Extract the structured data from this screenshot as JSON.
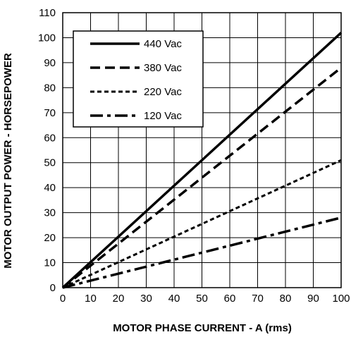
{
  "chart_data": {
    "type": "line",
    "xlabel": "MOTOR PHASE CURRENT - A (rms)",
    "ylabel": "MOTOR OUTPUT POWER - HORSEPOWER",
    "xlim": [
      0,
      100
    ],
    "ylim": [
      0,
      110
    ],
    "x_ticks": [
      "0",
      "10",
      "20",
      "30",
      "40",
      "50",
      "60",
      "70",
      "80",
      "90",
      "100"
    ],
    "y_ticks": [
      "0",
      "10",
      "20",
      "30",
      "40",
      "50",
      "60",
      "70",
      "80",
      "90",
      "100",
      "110"
    ],
    "grid": true,
    "legend_position": "top-left",
    "series": [
      {
        "name": "440 Vac",
        "style": "solid",
        "x": [
          0,
          100
        ],
        "y": [
          0,
          102
        ]
      },
      {
        "name": "380 Vac",
        "style": "dashed",
        "x": [
          0,
          100
        ],
        "y": [
          0,
          88
        ]
      },
      {
        "name": "220 Vac",
        "style": "short-dash",
        "x": [
          0,
          100
        ],
        "y": [
          0,
          51
        ]
      },
      {
        "name": "120 Vac",
        "style": "dash-dot",
        "x": [
          0,
          100
        ],
        "y": [
          0,
          28
        ]
      }
    ]
  },
  "colors": {
    "line": "#000000",
    "background": "#ffffff"
  }
}
